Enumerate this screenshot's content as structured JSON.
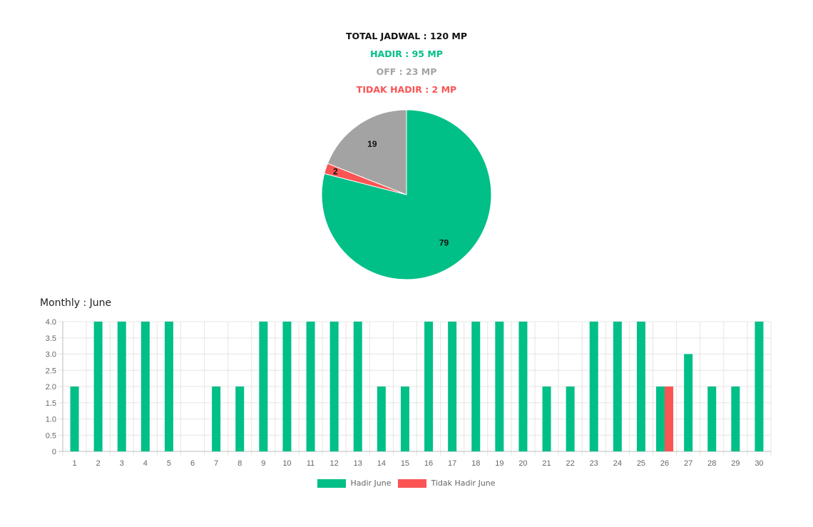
{
  "summary": {
    "total": "TOTAL JADWAL : 120 MP",
    "hadir": "HADIR : 95 MP",
    "off": "OFF : 23 MP",
    "tidak_hadir": "TIDAK HADIR : 2 MP"
  },
  "monthly_title": "Monthly : June",
  "colors": {
    "hadir": "#00bf87",
    "tidak_hadir": "#fb5454",
    "off": "#a3a3a3"
  },
  "chart_data": [
    {
      "type": "pie",
      "labels": [
        "Hadir",
        "Tidak Hadir",
        "Off"
      ],
      "values": [
        79,
        2,
        19
      ],
      "colors": [
        "#00bf87",
        "#fb5454",
        "#a3a3a3"
      ],
      "data_labels": [
        "79",
        "2",
        "19"
      ]
    },
    {
      "type": "bar",
      "categories": [
        "1",
        "2",
        "3",
        "4",
        "5",
        "6",
        "7",
        "8",
        "9",
        "10",
        "11",
        "12",
        "13",
        "14",
        "15",
        "16",
        "17",
        "18",
        "19",
        "20",
        "21",
        "22",
        "23",
        "24",
        "25",
        "26",
        "27",
        "28",
        "29",
        "30"
      ],
      "series": [
        {
          "name": "Hadir June",
          "color": "#00bf87",
          "values": [
            2,
            4,
            4,
            4,
            4,
            0,
            2,
            2,
            4,
            4,
            4,
            4,
            4,
            2,
            2,
            4,
            4,
            4,
            4,
            4,
            2,
            2,
            4,
            4,
            4,
            2,
            3,
            2,
            2,
            4
          ]
        },
        {
          "name": "Tidak Hadir June",
          "color": "#fb5454",
          "values": [
            0,
            0,
            0,
            0,
            0,
            0,
            0,
            0,
            0,
            0,
            0,
            0,
            0,
            0,
            0,
            0,
            0,
            0,
            0,
            0,
            0,
            0,
            0,
            0,
            0,
            2,
            0,
            0,
            0,
            0
          ]
        }
      ],
      "ylim": [
        0,
        4
      ],
      "yticks": [
        "0",
        "0.5",
        "1.0",
        "1.5",
        "2.0",
        "2.5",
        "3.0",
        "3.5",
        "4.0"
      ],
      "grid": true,
      "legend": "bottom"
    }
  ]
}
